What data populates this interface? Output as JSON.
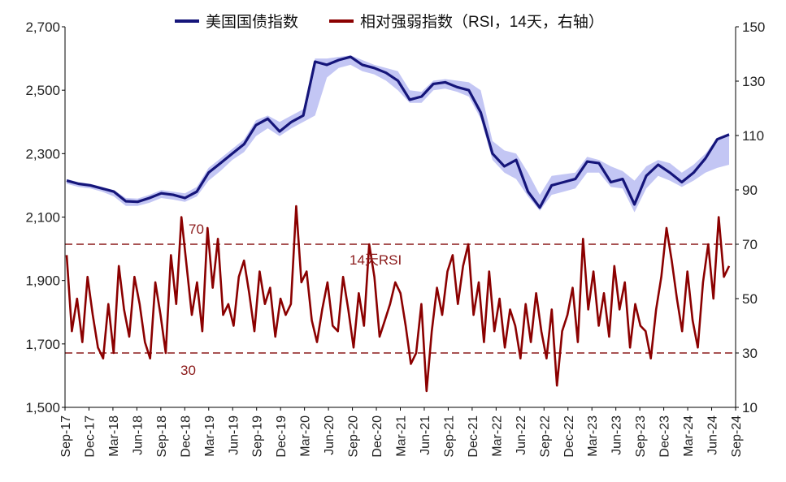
{
  "legend": {
    "bond_index": "美国国债指数",
    "rsi": "相对强弱指数（RSI，14天，右轴）"
  },
  "colors": {
    "bond_line": "#15157a",
    "bond_band": "#c3c6f4",
    "rsi_line": "#8b0000",
    "ref_line": "#8b1a1a",
    "annotation": "#8b1a1a"
  },
  "annotations": {
    "upper": "70",
    "lower": "30",
    "rsi_label": "14天RSI"
  },
  "chart_data": {
    "type": "line",
    "left_axis": {
      "range": [
        1500,
        2700
      ],
      "ticks": [
        "1,500",
        "1,700",
        "1,900",
        "2,100",
        "2,300",
        "2,500",
        "2,700"
      ]
    },
    "right_axis": {
      "range": [
        10,
        150
      ],
      "ticks": [
        "10",
        "30",
        "50",
        "70",
        "90",
        "110",
        "130",
        "150"
      ]
    },
    "x_tick_labels": [
      "Sep-17",
      "Dec-17",
      "Mar-18",
      "Jun-18",
      "Sep-18",
      "Dec-18",
      "Mar-19",
      "Jun-19",
      "Sep-19",
      "Dec-19",
      "Mar-20",
      "Jun-20",
      "Sep-20",
      "Dec-20",
      "Mar-21",
      "Jun-21",
      "Sep-21",
      "Dec-21",
      "Mar-22",
      "Jun-22",
      "Sep-22",
      "Dec-22",
      "Mar-23",
      "Jun-23",
      "Sep-23",
      "Dec-23",
      "Mar-24",
      "Jun-24",
      "Sep-24"
    ],
    "reference_lines_right_axis": [
      70,
      30
    ],
    "series": [
      {
        "name": "美国国债指数",
        "axis": "left",
        "values": [
          2215,
          2205,
          2200,
          2190,
          2180,
          2150,
          2148,
          2160,
          2175,
          2170,
          2160,
          2180,
          2240,
          2270,
          2300,
          2330,
          2390,
          2410,
          2370,
          2400,
          2420,
          2590,
          2580,
          2595,
          2605,
          2580,
          2570,
          2555,
          2530,
          2470,
          2480,
          2520,
          2525,
          2510,
          2500,
          2430,
          2300,
          2260,
          2280,
          2180,
          2130,
          2200,
          2210,
          2220,
          2275,
          2270,
          2210,
          2220,
          2140,
          2230,
          2265,
          2240,
          2210,
          2240,
          2285,
          2345,
          2360
        ]
      },
      {
        "name": "band",
        "axis": "left",
        "upper": [
          2220,
          2210,
          2205,
          2195,
          2185,
          2160,
          2158,
          2170,
          2185,
          2180,
          2175,
          2195,
          2255,
          2285,
          2315,
          2345,
          2405,
          2420,
          2400,
          2420,
          2440,
          2600,
          2600,
          2605,
          2610,
          2595,
          2580,
          2570,
          2560,
          2500,
          2495,
          2530,
          2535,
          2530,
          2525,
          2500,
          2340,
          2310,
          2300,
          2240,
          2170,
          2230,
          2235,
          2240,
          2290,
          2280,
          2260,
          2245,
          2215,
          2260,
          2280,
          2270,
          2240,
          2265,
          2300,
          2350,
          2365
        ],
        "lower": [
          2205,
          2195,
          2190,
          2180,
          2165,
          2135,
          2135,
          2145,
          2160,
          2155,
          2148,
          2165,
          2215,
          2245,
          2280,
          2305,
          2355,
          2380,
          2355,
          2380,
          2400,
          2420,
          2540,
          2570,
          2580,
          2560,
          2550,
          2530,
          2500,
          2460,
          2460,
          2500,
          2505,
          2495,
          2480,
          2410,
          2280,
          2240,
          2220,
          2165,
          2120,
          2170,
          2180,
          2190,
          2240,
          2240,
          2195,
          2190,
          2115,
          2190,
          2230,
          2215,
          2195,
          2215,
          2240,
          2255,
          2265
        ]
      },
      {
        "name": "14天RSI",
        "axis": "right",
        "values": [
          66,
          38,
          50,
          34,
          58,
          44,
          32,
          28,
          48,
          30,
          62,
          46,
          36,
          58,
          48,
          34,
          28,
          56,
          44,
          30,
          66,
          48,
          80,
          62,
          44,
          56,
          38,
          76,
          54,
          72,
          44,
          48,
          40,
          58,
          64,
          52,
          38,
          60,
          48,
          54,
          36,
          50,
          44,
          48,
          84,
          56,
          60,
          42,
          34,
          46,
          56,
          40,
          38,
          58,
          46,
          32,
          52,
          40,
          70,
          58,
          36,
          42,
          48,
          56,
          52,
          40,
          26,
          30,
          48,
          16,
          38,
          54,
          44,
          60,
          66,
          48,
          62,
          70,
          44,
          56,
          34,
          60,
          38,
          50,
          32,
          46,
          40,
          28,
          48,
          34,
          52,
          38,
          28,
          46,
          18,
          38,
          44,
          54,
          34,
          72,
          46,
          60,
          40,
          52,
          36,
          62,
          46,
          56,
          32,
          48,
          40,
          38,
          28,
          46,
          58,
          76,
          64,
          50,
          38,
          60,
          42,
          32,
          56,
          70,
          50,
          80,
          58,
          62
        ]
      }
    ]
  }
}
